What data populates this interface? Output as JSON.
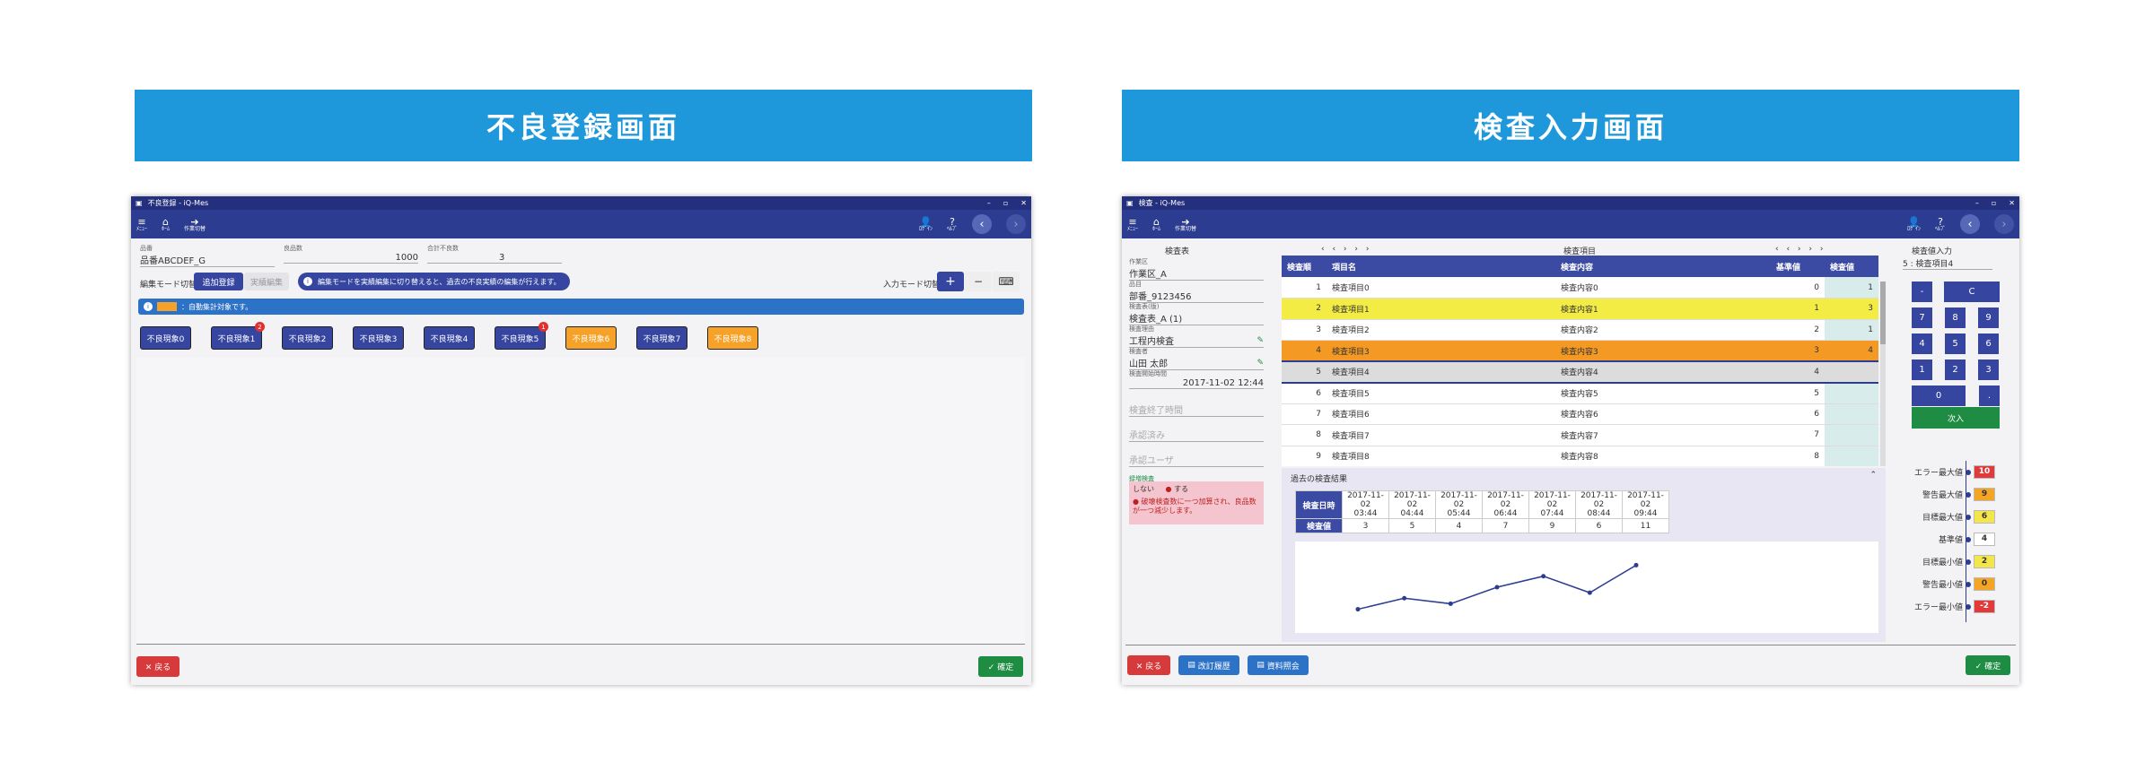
{
  "left_banner": "不良登録画面",
  "right_banner": "検査入力画面",
  "left": {
    "titlebar": "不良登録 - iQ-Mes",
    "appbar": [
      {
        "icon": "menu-icon",
        "label": "ﾒﾆｭｰ"
      },
      {
        "icon": "home-icon",
        "label": "ﾎｰﾑ"
      },
      {
        "icon": "arrow-icon",
        "label": "作業切替"
      }
    ],
    "appbar_right": [
      {
        "icon": "user-icon",
        "label": "ﾛｸﾞｲﾝ"
      },
      {
        "icon": "help-icon",
        "label": "ﾍﾙﾌﾟ"
      }
    ],
    "fields": [
      {
        "label": "品番",
        "value": "品番ABCDEF_G"
      },
      {
        "label": "良品数",
        "value": "1000"
      },
      {
        "label": "合計不良数",
        "value": "3"
      }
    ],
    "edit_mode_label": "編集モード切替",
    "add_register": "追加登録",
    "actual_edit": "実績編集",
    "info_message": "編集モードを実績編集に切り替えると、過去の不良実績の編集が行えます。",
    "input_mode_label": "入力モード切替",
    "input_plus": "+",
    "input_minus": "−",
    "input_kbd": "⌨",
    "auto_message": "：自動集計対象です。",
    "defects": [
      {
        "label": "不良現象0",
        "color": "blue",
        "badge": ""
      },
      {
        "label": "不良現象1",
        "color": "blue",
        "badge": "2"
      },
      {
        "label": "不良現象2",
        "color": "blue",
        "badge": ""
      },
      {
        "label": "不良現象3",
        "color": "blue",
        "badge": ""
      },
      {
        "label": "不良現象4",
        "color": "blue",
        "badge": ""
      },
      {
        "label": "不良現象5",
        "color": "blue",
        "badge": "1"
      },
      {
        "label": "不良現象6",
        "color": "orange",
        "badge": ""
      },
      {
        "label": "不良現象7",
        "color": "blue",
        "badge": ""
      },
      {
        "label": "不良現象8",
        "color": "orange",
        "badge": ""
      }
    ],
    "back": "✕ 戻る",
    "confirm": "✓ 確定"
  },
  "right": {
    "titlebar": "検査 - iQ-Mes",
    "appbar": [
      {
        "icon": "menu-icon",
        "label": "ﾒﾆｭｰ"
      },
      {
        "icon": "home-icon",
        "label": "ﾎｰﾑ"
      },
      {
        "icon": "arrow-icon",
        "label": "作業切替"
      }
    ],
    "appbar_right": [
      {
        "icon": "user-icon",
        "label": "ﾛｸﾞｲﾝ"
      },
      {
        "icon": "help-icon",
        "label": "ﾍﾙﾌﾟ"
      }
    ],
    "sheet_header": "検査表",
    "sheet_fields": [
      {
        "label": "作業区",
        "value": "作業区_A"
      },
      {
        "label": "品目",
        "value": "部番_9123456"
      },
      {
        "label": "検査表(版)",
        "value": "検査表_A (1)"
      },
      {
        "label": "検査理由",
        "value": "工程内検査"
      },
      {
        "label": "検査者",
        "value": "山田 太郎"
      },
      {
        "label": "検査開始時間",
        "value": "2017-11-02 12:44"
      }
    ],
    "sheet_placeholders": [
      "検査終了時間",
      "承認済み",
      "承認ユーザ"
    ],
    "reinspect_label": "録増検査",
    "reinspect_off": "しない",
    "reinspect_on": "する",
    "reinspect_note": "● 破壊検査数に一つ加算され、良品数が一つ減少します。",
    "items_header": "検査項目",
    "pager": "‹ ‹ › › ›",
    "pager2": "‹ ‹ › › ›",
    "columns": [
      "検査順",
      "項目名",
      "検査内容",
      "基準値",
      "検査値"
    ],
    "rows": [
      {
        "n": "1",
        "name": "検査項目0",
        "content": "検査内容0",
        "std": "0",
        "val": "1",
        "style": ""
      },
      {
        "n": "2",
        "name": "検査項目1",
        "content": "検査内容1",
        "std": "1",
        "val": "3",
        "style": "y"
      },
      {
        "n": "3",
        "name": "検査項目2",
        "content": "検査内容2",
        "std": "2",
        "val": "1",
        "style": ""
      },
      {
        "n": "4",
        "name": "検査項目3",
        "content": "検査内容3",
        "std": "3",
        "val": "4",
        "style": "o"
      },
      {
        "n": "5",
        "name": "検査項目4",
        "content": "検査内容4",
        "std": "4",
        "val": "",
        "style": "g"
      },
      {
        "n": "6",
        "name": "検査項目5",
        "content": "検査内容5",
        "std": "5",
        "val": "",
        "style": ""
      },
      {
        "n": "7",
        "name": "検査項目6",
        "content": "検査内容6",
        "std": "6",
        "val": "",
        "style": ""
      },
      {
        "n": "8",
        "name": "検査項目7",
        "content": "検査内容7",
        "std": "7",
        "val": "",
        "style": ""
      },
      {
        "n": "9",
        "name": "検査項目8",
        "content": "検査内容8",
        "std": "8",
        "val": "",
        "style": ""
      }
    ],
    "history_title": "過去の検査結果",
    "history_date_label": "検査日時",
    "history_val_label": "検査値",
    "history": [
      {
        "date": "2017-11-02",
        "time": "03:44",
        "val": 3
      },
      {
        "date": "2017-11-02",
        "time": "04:44",
        "val": 5
      },
      {
        "date": "2017-11-02",
        "time": "05:44",
        "val": 4
      },
      {
        "date": "2017-11-02",
        "time": "06:44",
        "val": 7
      },
      {
        "date": "2017-11-02",
        "time": "07:44",
        "val": 9
      },
      {
        "date": "2017-11-02",
        "time": "08:44",
        "val": 6
      },
      {
        "date": "2017-11-02",
        "time": "09:44",
        "val": 11
      }
    ],
    "input_header": "検査値入力",
    "input_target": "5 : 検査項目4",
    "keypad": [
      "-",
      "C",
      "7",
      "8",
      "9",
      "4",
      "5",
      "6",
      "1",
      "2",
      "3",
      "0",
      "."
    ],
    "next": "次入",
    "thresholds": [
      {
        "label": "エラー最大値",
        "value": "10",
        "color": "#e23a3a"
      },
      {
        "label": "警告最大値",
        "value": "9",
        "color": "#f5a524"
      },
      {
        "label": "目標最大値",
        "value": "6",
        "color": "#f2e64a"
      },
      {
        "label": "基準値",
        "value": "4",
        "color": "#ffffff"
      },
      {
        "label": "目標最小値",
        "value": "2",
        "color": "#f2e64a"
      },
      {
        "label": "警告最小値",
        "value": "0",
        "color": "#f5a524"
      },
      {
        "label": "エラー最小値",
        "value": "-2",
        "color": "#e23a3a"
      }
    ],
    "back": "✕ 戻る",
    "revision": "改訂履歴",
    "docs": "資料照会",
    "confirm": "✓ 確定"
  }
}
